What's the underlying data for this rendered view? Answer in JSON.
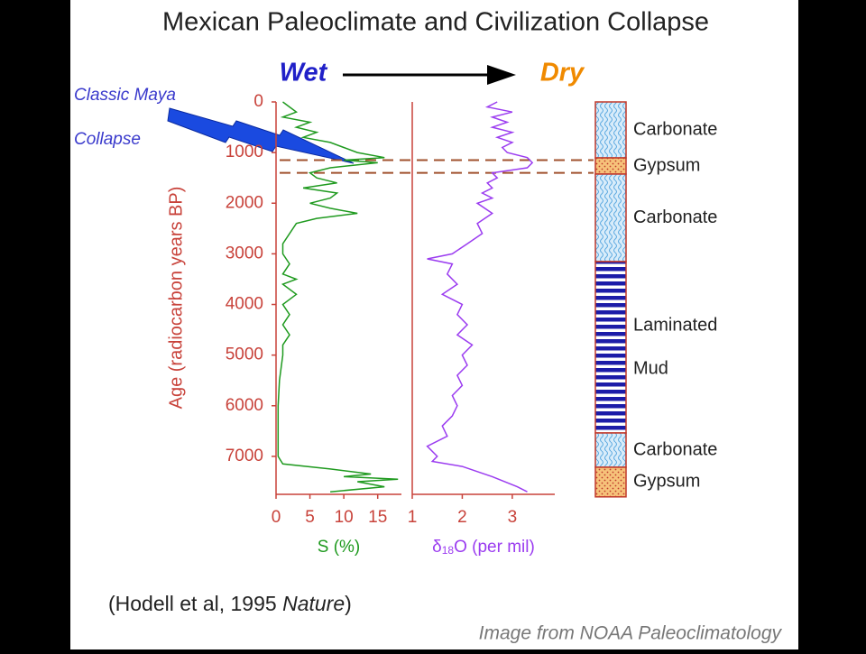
{
  "title": "Mexican Paleoclimate and Civilization Collapse",
  "wet": "Wet",
  "dry": "Dry",
  "annotation": [
    "Classic Maya",
    "Collapse"
  ],
  "citation": {
    "text": "(Hodell et al, 1995",
    "journal": "Nature",
    "close": ")"
  },
  "credit": "Image from NOAA Paleoclimatology",
  "chart_data": [
    {
      "type": "line",
      "ylabel": "Age (radiocarbon years BP)",
      "xlabel": [
        "S (%)"
      ],
      "ylim": [
        0,
        7750
      ],
      "yticks": [
        0,
        1000,
        2000,
        3000,
        4000,
        5000,
        6000,
        7000
      ],
      "xlim": [
        0,
        18.5
      ],
      "xticks": [
        0,
        5,
        10,
        15
      ],
      "hlines": [
        1150,
        1400
      ],
      "y": [
        0,
        100,
        200,
        300,
        400,
        500,
        600,
        700,
        800,
        900,
        1000,
        1100,
        1150,
        1200,
        1300,
        1400,
        1500,
        1600,
        1700,
        1800,
        1900,
        2000,
        2100,
        2200,
        2300,
        2400,
        2600,
        2800,
        3000,
        3200,
        3400,
        3500,
        3600,
        3800,
        4000,
        4200,
        4400,
        4600,
        4800,
        5000,
        5500,
        6000,
        6500,
        7000,
        7150,
        7250,
        7350,
        7400,
        7450,
        7500,
        7600,
        7700
      ],
      "series": [
        {
          "color": "#1f9a1f",
          "values": [
            1,
            2,
            3,
            1,
            5,
            3,
            6,
            4,
            8,
            10,
            12,
            16,
            10,
            15,
            8,
            5,
            6,
            9,
            4,
            9,
            8,
            5,
            8,
            12,
            6,
            3,
            2,
            1,
            1,
            2,
            1,
            3,
            1,
            3,
            1,
            2,
            1,
            2,
            1,
            1,
            0.5,
            0.3,
            0.3,
            0.3,
            1,
            8,
            14,
            10,
            18,
            12,
            16,
            8
          ]
        }
      ]
    },
    {
      "type": "line",
      "xlabel": [
        "δ",
        "18",
        "O (per mil)"
      ],
      "ylim": [
        0,
        7750
      ],
      "xlim": [
        1,
        3.85
      ],
      "xticks": [
        1,
        2,
        3
      ],
      "y": [
        0,
        100,
        200,
        300,
        400,
        500,
        600,
        700,
        800,
        900,
        1000,
        1100,
        1200,
        1300,
        1400,
        1500,
        1600,
        1700,
        1800,
        1900,
        2000,
        2200,
        2400,
        2600,
        2800,
        3000,
        3100,
        3200,
        3400,
        3600,
        3800,
        4000,
        4200,
        4400,
        4600,
        4800,
        5000,
        5200,
        5400,
        5600,
        5800,
        6000,
        6200,
        6400,
        6600,
        6800,
        7000,
        7100,
        7200,
        7400,
        7600,
        7700
      ],
      "series": [
        {
          "color": "#9b3cf0",
          "values": [
            2.7,
            2.5,
            3.0,
            2.6,
            2.9,
            2.6,
            3.0,
            2.7,
            3.0,
            2.8,
            2.9,
            3.3,
            3.4,
            3.3,
            2.6,
            2.7,
            2.5,
            2.6,
            2.4,
            2.6,
            2.3,
            2.6,
            2.3,
            2.4,
            2.1,
            1.8,
            1.3,
            1.8,
            1.7,
            1.9,
            1.6,
            2.0,
            1.9,
            2.1,
            1.9,
            2.2,
            2.0,
            2.1,
            1.9,
            2.0,
            1.8,
            1.9,
            1.8,
            1.6,
            1.7,
            1.3,
            1.5,
            1.4,
            2.0,
            2.6,
            3.1,
            3.3
          ]
        }
      ]
    }
  ],
  "column": [
    {
      "label": [
        "Carbonate"
      ],
      "top": 0,
      "bottom": 1105,
      "pattern": "wavy"
    },
    {
      "label": [
        "Gypsum"
      ],
      "top": 1105,
      "bottom": 1425,
      "pattern": "dots"
    },
    {
      "label": [
        "Carbonate"
      ],
      "top": 1425,
      "bottom": 3153,
      "pattern": "wavy"
    },
    {
      "label": [
        "Laminated",
        "Mud"
      ],
      "top": 3153,
      "bottom": 6538,
      "pattern": "stripes"
    },
    {
      "label": [
        "Carbonate"
      ],
      "top": 6538,
      "bottom": 7215,
      "pattern": "wavy"
    },
    {
      "label": [
        "Gypsum"
      ],
      "top": 7215,
      "bottom": 7800,
      "pattern": "dots"
    }
  ]
}
